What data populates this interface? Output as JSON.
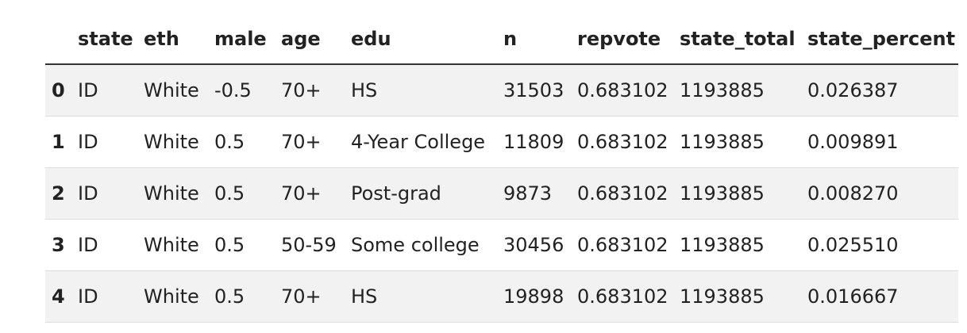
{
  "table": {
    "columns": [
      "state",
      "eth",
      "male",
      "age",
      "edu",
      "n",
      "repvote",
      "state_total",
      "state_percent"
    ],
    "rows": [
      {
        "index": "0",
        "state": "ID",
        "eth": "White",
        "male": "-0.5",
        "age": "70+",
        "edu": "HS",
        "n": "31503",
        "repvote": "0.683102",
        "state_total": "1193885",
        "state_percent": "0.026387"
      },
      {
        "index": "1",
        "state": "ID",
        "eth": "White",
        "male": "0.5",
        "age": "70+",
        "edu": "4-Year College",
        "n": "11809",
        "repvote": "0.683102",
        "state_total": "1193885",
        "state_percent": "0.009891"
      },
      {
        "index": "2",
        "state": "ID",
        "eth": "White",
        "male": "0.5",
        "age": "70+",
        "edu": "Post-grad",
        "n": "9873",
        "repvote": "0.683102",
        "state_total": "1193885",
        "state_percent": "0.008270"
      },
      {
        "index": "3",
        "state": "ID",
        "eth": "White",
        "male": "0.5",
        "age": "50-59",
        "edu": "Some college",
        "n": "30456",
        "repvote": "0.683102",
        "state_total": "1193885",
        "state_percent": "0.025510"
      },
      {
        "index": "4",
        "state": "ID",
        "eth": "White",
        "male": "0.5",
        "age": "70+",
        "edu": "HS",
        "n": "19898",
        "repvote": "0.683102",
        "state_total": "1193885",
        "state_percent": "0.016667"
      }
    ]
  }
}
